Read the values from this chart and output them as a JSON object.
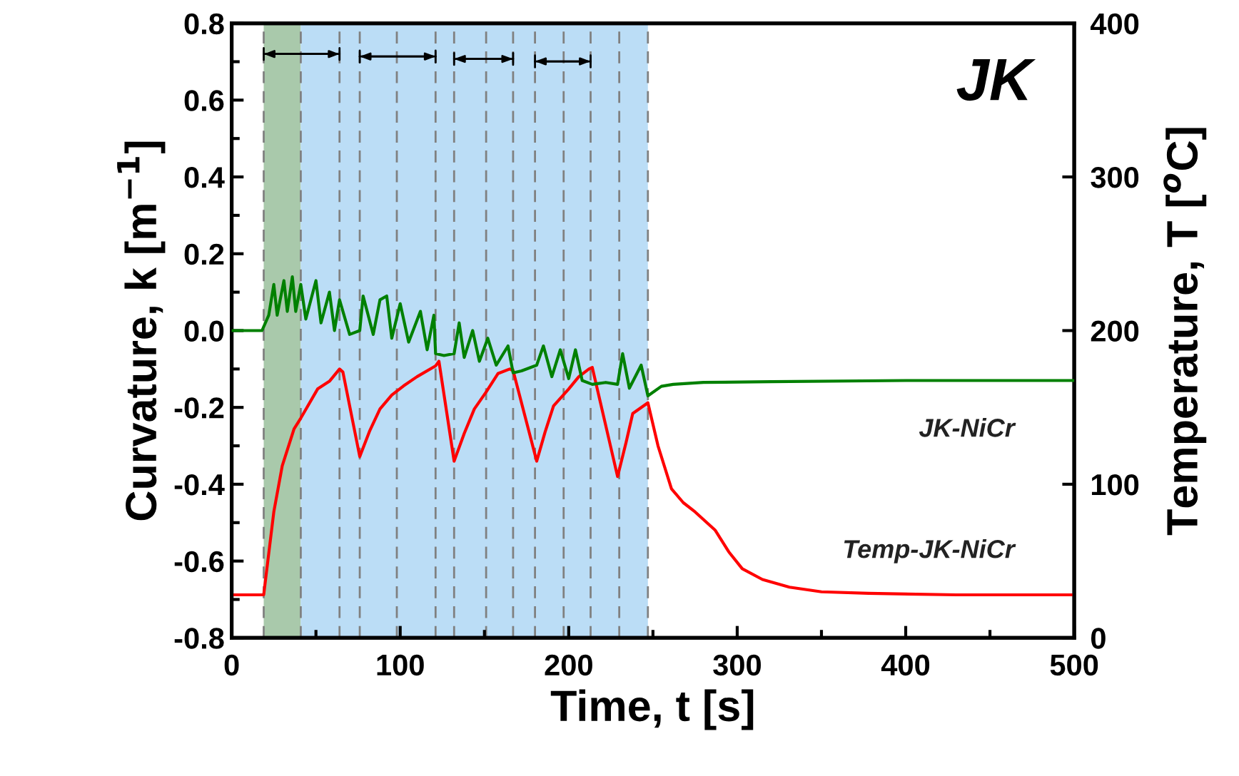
{
  "chart_data": {
    "type": "line",
    "xlabel": "Time, t [s]",
    "ylabel": "Curvature, k [m$^{−1}$]",
    "y2label": "Temperature, T [$^{o}$C]",
    "annotations": [
      "JK"
    ],
    "xlim": [
      0,
      500
    ],
    "xticks": [
      0,
      100,
      200,
      300,
      400,
      500
    ],
    "ylim": [
      -0.8,
      0.8
    ],
    "yticks": [
      -0.8,
      -0.6,
      -0.4,
      -0.2,
      {
        "value": 0,
        "label": "0.0"
      },
      0.2,
      0.4,
      0.6,
      0.8
    ],
    "y2lim": [
      0,
      400
    ],
    "y2ticks": [
      0,
      100,
      200,
      300,
      400
    ],
    "grid": false,
    "legend": false,
    "marker": "none",
    "line_style": "solid",
    "bands": [
      {
        "axis": "x",
        "from": 19,
        "to": 41,
        "label": null,
        "color": "#a9c9ab"
      },
      {
        "axis": "x",
        "from": 41,
        "to": 247,
        "label": null,
        "color": "#bbddf6"
      }
    ],
    "ref_lines": [
      {
        "axis": "x",
        "value": 19,
        "label": null,
        "color": "#808080",
        "line_style": "dashed"
      },
      {
        "axis": "x",
        "value": 41,
        "label": null,
        "color": "#808080",
        "line_style": "dashed"
      },
      {
        "axis": "x",
        "value": 64,
        "label": null,
        "color": "#808080",
        "line_style": "dashed"
      },
      {
        "axis": "x",
        "value": 76,
        "label": null,
        "color": "#808080",
        "line_style": "dashed"
      },
      {
        "axis": "x",
        "value": 98,
        "label": null,
        "color": "#808080",
        "line_style": "dashed"
      },
      {
        "axis": "x",
        "value": 121,
        "label": null,
        "color": "#808080",
        "line_style": "dashed"
      },
      {
        "axis": "x",
        "value": 132,
        "label": null,
        "color": "#808080",
        "line_style": "dashed"
      },
      {
        "axis": "x",
        "value": 151,
        "label": null,
        "color": "#808080",
        "line_style": "dashed"
      },
      {
        "axis": "x",
        "value": 167,
        "label": null,
        "color": "#808080",
        "line_style": "dashed"
      },
      {
        "axis": "x",
        "value": 180,
        "label": null,
        "color": "#808080",
        "line_style": "dashed"
      },
      {
        "axis": "x",
        "value": 197,
        "label": null,
        "color": "#808080",
        "line_style": "dashed"
      },
      {
        "axis": "x",
        "value": 213,
        "label": null,
        "color": "#808080",
        "line_style": "dashed"
      },
      {
        "axis": "x",
        "value": 230,
        "label": null,
        "color": "#808080",
        "line_style": "dashed"
      },
      {
        "axis": "x",
        "value": 247,
        "label": null,
        "color": "#808080",
        "line_style": "dashed"
      }
    ],
    "series": [
      {
        "name": "JK-NiCr",
        "color": "#008000",
        "x": [
          0,
          10,
          18,
          22,
          25,
          27,
          31,
          33,
          36,
          38,
          41,
          44,
          50,
          53,
          58,
          61,
          64,
          70,
          76,
          78,
          84,
          88,
          92,
          95,
          100,
          105,
          112,
          116,
          120,
          121,
          126,
          132,
          135,
          138,
          143,
          147,
          152,
          157,
          164,
          167,
          172,
          181,
          185,
          190,
          195,
          200,
          204,
          208,
          214,
          222,
          229,
          232,
          236,
          243,
          247,
          255,
          262,
          280,
          320,
          400,
          500
        ],
        "values": [
          0.0,
          0.0,
          0.0,
          0.04,
          0.12,
          0.04,
          0.13,
          0.05,
          0.14,
          0.05,
          0.12,
          0.03,
          0.13,
          0.02,
          0.1,
          0.0,
          0.08,
          -0.01,
          0.0,
          0.09,
          -0.01,
          0.08,
          0.09,
          -0.02,
          0.07,
          -0.03,
          0.05,
          -0.05,
          0.04,
          -0.06,
          -0.065,
          -0.06,
          0.02,
          -0.07,
          0.0,
          -0.08,
          -0.02,
          -0.09,
          -0.04,
          -0.11,
          -0.105,
          -0.09,
          -0.04,
          -0.12,
          -0.05,
          -0.125,
          -0.05,
          -0.13,
          -0.14,
          -0.135,
          -0.14,
          -0.06,
          -0.15,
          -0.09,
          -0.17,
          -0.145,
          -0.14,
          -0.135,
          -0.133,
          -0.13,
          -0.13
        ]
      },
      {
        "name": "Temp-JK-NiCr",
        "color": "#ff0000",
        "axis": "y2",
        "x": [
          0,
          19,
          25,
          30,
          37,
          41,
          51,
          58,
          64,
          66,
          76,
          82,
          88,
          95,
          102,
          110,
          121,
          123,
          132,
          138,
          144,
          151,
          158,
          165,
          167,
          181,
          186,
          191,
          200,
          206,
          212,
          214,
          229,
          234,
          238,
          247,
          253,
          261,
          268,
          275,
          287,
          295,
          303,
          315,
          331,
          350,
          378,
          430,
          500
        ],
        "values": [
          28,
          28,
          82,
          112,
          136,
          143,
          162,
          167,
          175,
          173,
          118,
          135,
          149,
          158,
          164,
          170,
          177,
          180,
          115,
          133,
          149,
          160,
          172,
          175,
          174,
          115,
          134,
          151,
          162,
          170,
          175,
          176,
          105,
          127,
          146,
          153,
          125,
          97,
          88,
          82,
          70,
          56,
          45,
          38,
          33,
          30,
          29,
          28,
          28
        ]
      }
    ]
  }
}
